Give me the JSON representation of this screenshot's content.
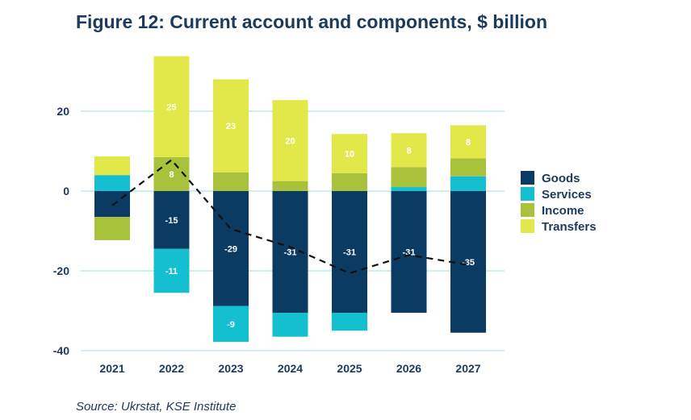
{
  "chart_data": {
    "type": "bar",
    "stacked": true,
    "title": "Figure 12: Current account and components, $ billion",
    "source": "Source: Ukrstat, KSE Institute",
    "categories": [
      "2021",
      "2022",
      "2023",
      "2024",
      "2025",
      "2026",
      "2027"
    ],
    "ylim": [
      -40,
      35
    ],
    "yticks": [
      20,
      0,
      -20,
      -40
    ],
    "series": [
      {
        "name": "Goods",
        "color": "#0b3a63",
        "values": [
          -6.5,
          -14.5,
          -28.8,
          -30.5,
          -30.5,
          -30.5,
          -35.5
        ]
      },
      {
        "name": "Services",
        "color": "#14bfd0",
        "values": [
          4,
          -11,
          -9,
          -6,
          -4.5,
          1,
          3.7
        ]
      },
      {
        "name": "Income",
        "color": "#a9c23b",
        "values": [
          -5.8,
          8.5,
          4.7,
          2.5,
          4.5,
          5,
          4.5
        ]
      },
      {
        "name": "Transfers",
        "color": "#e3e84a",
        "values": [
          4.7,
          25.3,
          23.3,
          20.3,
          9.8,
          8.5,
          8.3
        ]
      }
    ],
    "data_labels": {
      "Goods": [
        "",
        "-15",
        "-29",
        "-31",
        "-31",
        "-31",
        "-35"
      ],
      "Services": [
        "",
        "-11",
        "-9",
        "",
        "",
        "",
        ""
      ],
      "Income": [
        "",
        "8",
        "",
        "",
        "",
        "",
        ""
      ],
      "Transfers": [
        "",
        "25",
        "23",
        "20",
        "10",
        "8",
        "8"
      ]
    },
    "line": {
      "name": "Current account",
      "values": [
        -3.6,
        7.8,
        -9.5,
        -14,
        -20.6,
        -16,
        -18.5
      ]
    }
  }
}
